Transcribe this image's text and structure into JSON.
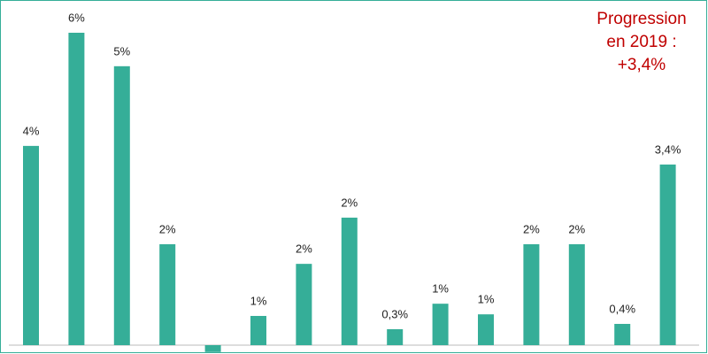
{
  "chart_data": {
    "type": "bar",
    "categories": [
      null,
      null,
      null,
      null,
      null,
      null,
      null,
      null,
      null,
      null,
      null,
      null,
      null,
      null,
      null
    ],
    "values": [
      3.75,
      5.88,
      5.25,
      1.9,
      -0.13,
      0.55,
      1.53,
      2.4,
      0.3,
      0.78,
      0.58,
      1.9,
      1.9,
      0.4,
      3.4
    ],
    "value_labels": [
      "4%",
      "6%",
      "5%",
      "2%",
      null,
      "1%",
      "2%",
      "2%",
      "0,3%",
      "1%",
      "1%",
      "2%",
      "2%",
      "0,4%",
      "3,4%"
    ],
    "color": "#35ae98",
    "annotation": [
      "Progression",
      "en 2019 :",
      "+3,4%"
    ]
  }
}
